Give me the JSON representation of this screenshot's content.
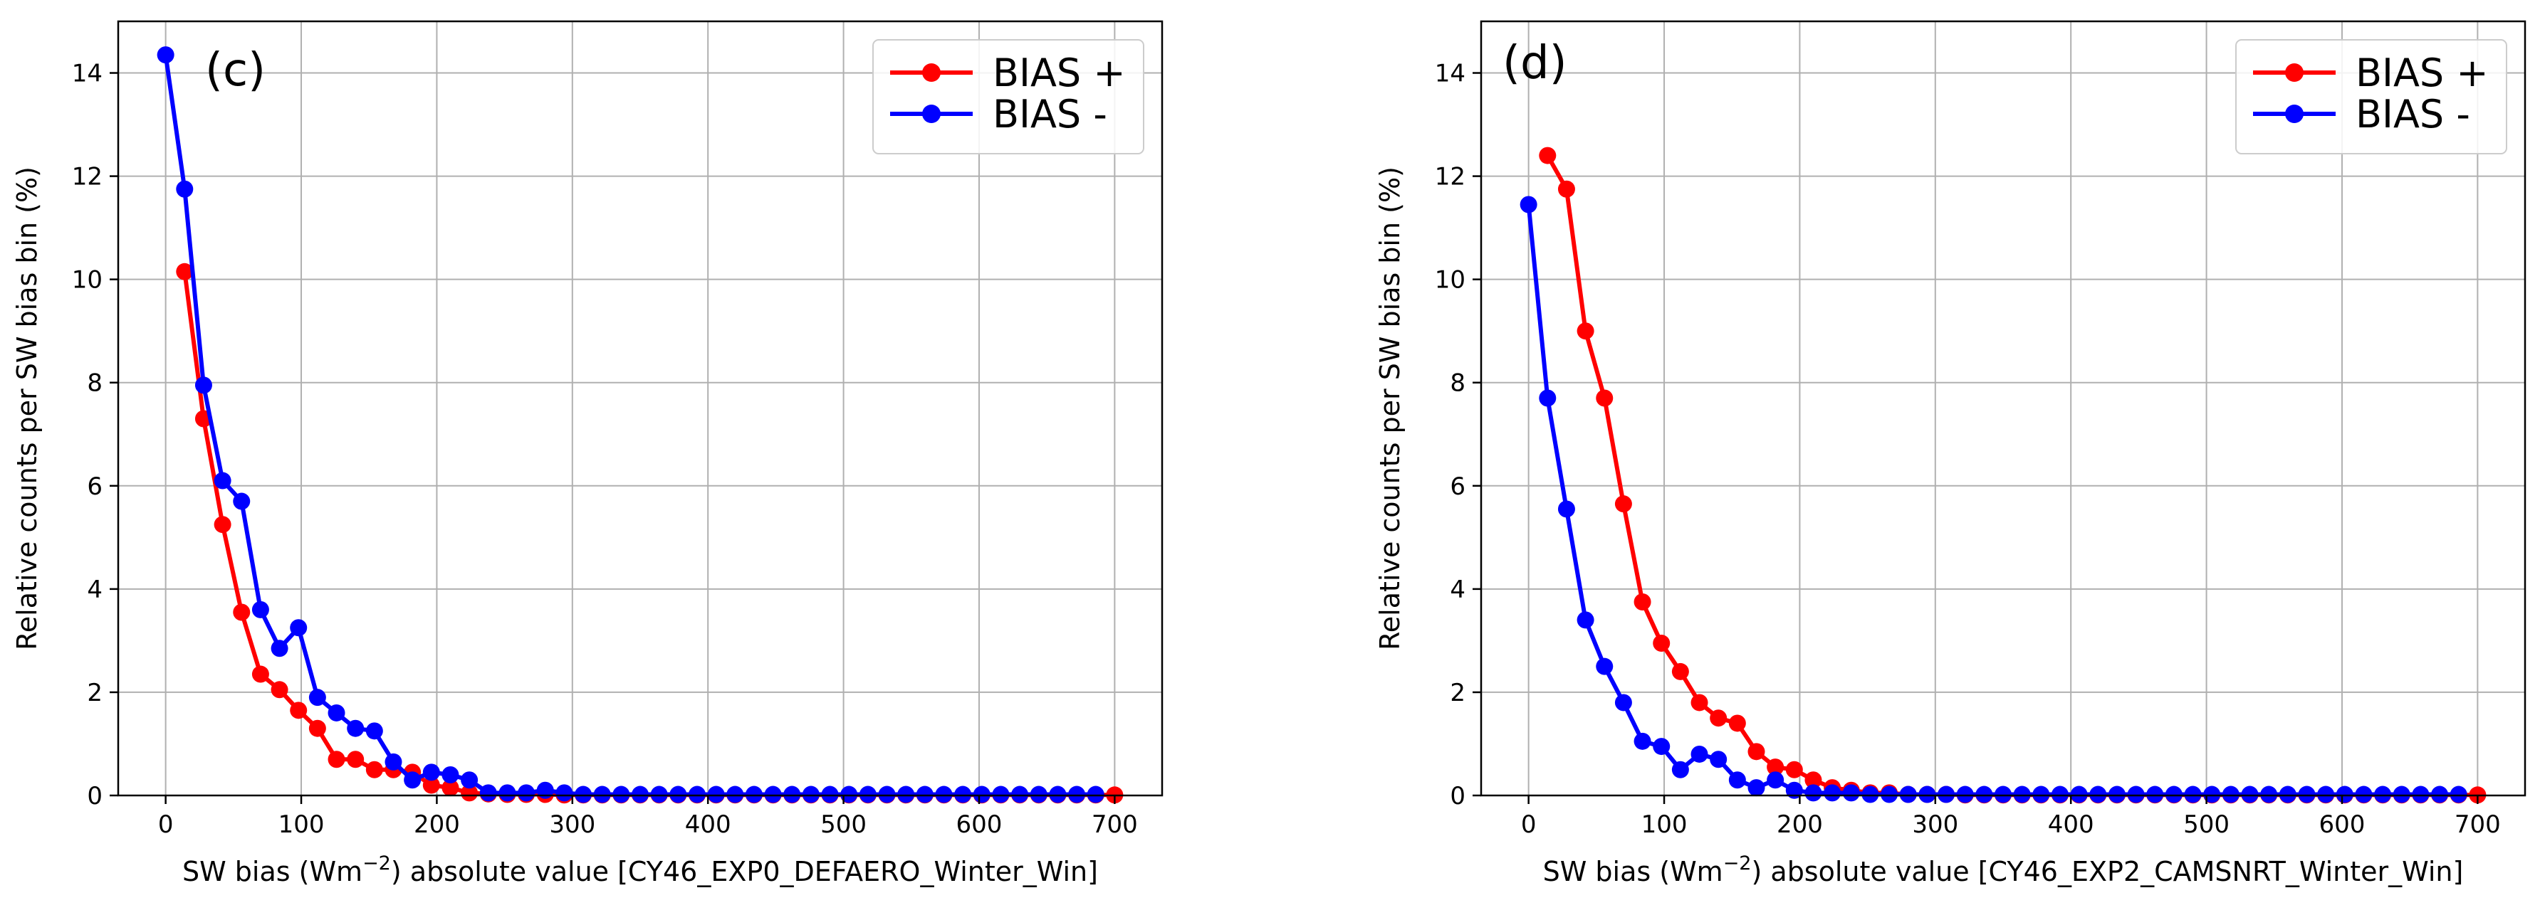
{
  "colors": {
    "bias_plus": "#ff0000",
    "bias_minus": "#0000ff",
    "grid": "#b0b0b0"
  },
  "chart_data": [
    {
      "type": "line",
      "panel_label": "(c)",
      "xlabel_pre": "SW bias (Wm",
      "xlabel_sup": "−2",
      "xlabel_post": ") absolute value [CY46_EXP0_DEFAERO_Winter_Win]",
      "ylabel": "Relative counts per SW bias bin (%)",
      "xlim": [
        -35,
        735
      ],
      "ylim": [
        0,
        15
      ],
      "xticks": [
        0,
        100,
        200,
        300,
        400,
        500,
        600,
        700
      ],
      "yticks": [
        0,
        2,
        4,
        6,
        8,
        10,
        12,
        14
      ],
      "legend_position": "top-right",
      "grid": true,
      "series": [
        {
          "name": "BIAS +",
          "color": "#ff0000",
          "x": [
            14,
            28,
            42,
            56,
            70,
            84,
            98,
            112,
            126,
            140,
            154,
            168,
            182,
            196,
            210,
            224,
            238,
            252,
            266,
            280,
            294,
            308,
            322,
            336,
            350,
            364,
            378,
            392,
            406,
            420,
            434,
            448,
            462,
            476,
            490,
            504,
            518,
            532,
            546,
            560,
            574,
            588,
            602,
            616,
            630,
            644,
            658,
            672,
            686,
            700
          ],
          "y": [
            10.15,
            7.3,
            5.25,
            3.55,
            2.35,
            2.05,
            1.65,
            1.3,
            0.7,
            0.7,
            0.5,
            0.5,
            0.45,
            0.2,
            0.15,
            0.05,
            0.03,
            0.02,
            0.02,
            0.02,
            0.01,
            0.01,
            0.01,
            0.01,
            0.01,
            0.01,
            0.01,
            0.01,
            0.01,
            0.01,
            0.01,
            0.01,
            0.01,
            0.01,
            0.01,
            0.01,
            0.01,
            0.01,
            0.01,
            0.01,
            0.01,
            0.01,
            0.01,
            0.01,
            0.01,
            0.01,
            0.01,
            0.01,
            0.01,
            0.01
          ]
        },
        {
          "name": "BIAS -",
          "color": "#0000ff",
          "x": [
            0,
            14,
            28,
            42,
            56,
            70,
            84,
            98,
            112,
            126,
            140,
            154,
            168,
            182,
            196,
            210,
            224,
            238,
            252,
            266,
            280,
            294,
            308,
            322,
            336,
            350,
            364,
            378,
            392,
            406,
            420,
            434,
            448,
            462,
            476,
            490,
            504,
            518,
            532,
            546,
            560,
            574,
            588,
            602,
            616,
            630,
            644,
            658,
            672,
            686
          ],
          "y": [
            14.35,
            11.75,
            7.95,
            6.1,
            5.7,
            3.6,
            2.85,
            3.25,
            1.9,
            1.6,
            1.3,
            1.25,
            0.65,
            0.3,
            0.45,
            0.4,
            0.3,
            0.05,
            0.05,
            0.05,
            0.1,
            0.05,
            0.02,
            0.02,
            0.02,
            0.02,
            0.02,
            0.02,
            0.02,
            0.02,
            0.02,
            0.02,
            0.02,
            0.02,
            0.02,
            0.02,
            0.02,
            0.02,
            0.02,
            0.02,
            0.02,
            0.02,
            0.02,
            0.02,
            0.02,
            0.02,
            0.02,
            0.02,
            0.02,
            0.02
          ]
        }
      ]
    },
    {
      "type": "line",
      "panel_label": "(d)",
      "xlabel_pre": "SW bias (Wm",
      "xlabel_sup": "−2",
      "xlabel_post": ") absolute value [CY46_EXP2_CAMSNRT_Winter_Win]",
      "ylabel": "Relative counts per SW bias bin (%)",
      "xlim": [
        -35,
        735
      ],
      "ylim": [
        0,
        15
      ],
      "xticks": [
        0,
        100,
        200,
        300,
        400,
        500,
        600,
        700
      ],
      "yticks": [
        0,
        2,
        4,
        6,
        8,
        10,
        12,
        14
      ],
      "legend_position": "top-right",
      "grid": true,
      "series": [
        {
          "name": "BIAS +",
          "color": "#ff0000",
          "x": [
            14,
            28,
            42,
            56,
            70,
            84,
            98,
            112,
            126,
            140,
            154,
            168,
            182,
            196,
            210,
            224,
            238,
            252,
            266,
            280,
            294,
            308,
            322,
            336,
            350,
            364,
            378,
            392,
            406,
            420,
            434,
            448,
            462,
            476,
            490,
            504,
            518,
            532,
            546,
            560,
            574,
            588,
            602,
            616,
            630,
            644,
            658,
            672,
            686,
            700
          ],
          "y": [
            12.4,
            11.75,
            9.0,
            7.7,
            5.65,
            3.75,
            2.95,
            2.4,
            1.8,
            1.5,
            1.4,
            0.85,
            0.55,
            0.5,
            0.3,
            0.15,
            0.1,
            0.05,
            0.05,
            0.02,
            0.02,
            0.02,
            0.01,
            0.01,
            0.01,
            0.01,
            0.01,
            0.01,
            0.01,
            0.01,
            0.01,
            0.01,
            0.01,
            0.01,
            0.01,
            0.01,
            0.01,
            0.01,
            0.01,
            0.01,
            0.01,
            0.01,
            0.01,
            0.01,
            0.01,
            0.01,
            0.01,
            0.01,
            0.01,
            0.01
          ]
        },
        {
          "name": "BIAS -",
          "color": "#0000ff",
          "x": [
            0,
            14,
            28,
            42,
            56,
            70,
            84,
            98,
            112,
            126,
            140,
            154,
            168,
            182,
            196,
            210,
            224,
            238,
            252,
            266,
            280,
            294,
            308,
            322,
            336,
            350,
            364,
            378,
            392,
            406,
            420,
            434,
            448,
            462,
            476,
            490,
            504,
            518,
            532,
            546,
            560,
            574,
            588,
            602,
            616,
            630,
            644,
            658,
            672,
            686
          ],
          "y": [
            11.45,
            7.7,
            5.55,
            3.4,
            2.5,
            1.8,
            1.05,
            0.95,
            0.5,
            0.8,
            0.7,
            0.3,
            0.15,
            0.3,
            0.1,
            0.05,
            0.05,
            0.05,
            0.02,
            0.02,
            0.02,
            0.02,
            0.02,
            0.02,
            0.02,
            0.02,
            0.02,
            0.02,
            0.02,
            0.02,
            0.02,
            0.02,
            0.02,
            0.02,
            0.02,
            0.02,
            0.02,
            0.02,
            0.02,
            0.02,
            0.02,
            0.02,
            0.02,
            0.02,
            0.02,
            0.02,
            0.02,
            0.02,
            0.02,
            0.02
          ]
        }
      ]
    }
  ]
}
